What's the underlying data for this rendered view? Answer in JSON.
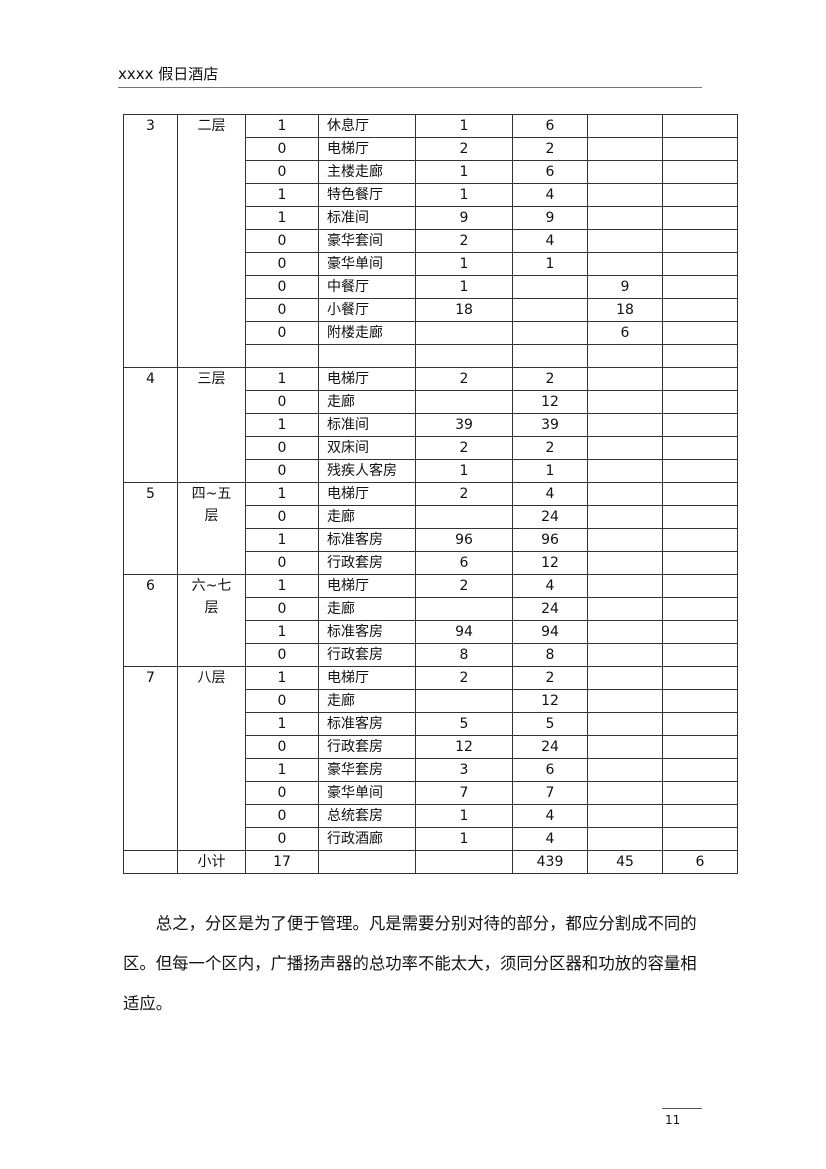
{
  "header": {
    "title": "xxxx 假日酒店"
  },
  "table": {
    "groups": [
      {
        "no": "3",
        "floor": "二层",
        "rows": [
          [
            "1",
            "休息厅",
            "1",
            "6",
            "",
            ""
          ],
          [
            "0",
            "电梯厅",
            "2",
            "2",
            "",
            ""
          ],
          [
            "0",
            "主楼走廊",
            "1",
            "6",
            "",
            ""
          ],
          [
            "1",
            "特色餐厅",
            "1",
            "4",
            "",
            ""
          ],
          [
            "1",
            "标准间",
            "9",
            "9",
            "",
            ""
          ],
          [
            "0",
            "豪华套间",
            "2",
            "4",
            "",
            ""
          ],
          [
            "0",
            "豪华单间",
            "1",
            "1",
            "",
            ""
          ],
          [
            "0",
            "中餐厅",
            "1",
            "",
            "9",
            ""
          ],
          [
            "0",
            "小餐厅",
            "18",
            "",
            "18",
            ""
          ],
          [
            "0",
            "附楼走廊",
            "",
            "",
            "6",
            ""
          ],
          [
            "",
            "",
            "",
            "",
            "",
            ""
          ]
        ]
      },
      {
        "no": "4",
        "floor": "三层",
        "rows": [
          [
            "1",
            "电梯厅",
            "2",
            "2",
            "",
            ""
          ],
          [
            "0",
            "走廊",
            "",
            "12",
            "",
            ""
          ],
          [
            "1",
            "标准间",
            "39",
            "39",
            "",
            ""
          ],
          [
            "0",
            "双床间",
            "2",
            "2",
            "",
            ""
          ],
          [
            "0",
            "残疾人客房",
            "1",
            "1",
            "",
            ""
          ]
        ]
      },
      {
        "no": "5",
        "floor": "四~五层",
        "rows": [
          [
            "1",
            "电梯厅",
            "2",
            "4",
            "",
            ""
          ],
          [
            "0",
            "走廊",
            "",
            "24",
            "",
            ""
          ],
          [
            "1",
            "标准客房",
            "96",
            "96",
            "",
            ""
          ],
          [
            "0",
            "行政套房",
            "6",
            "12",
            "",
            ""
          ]
        ]
      },
      {
        "no": "6",
        "floor": "六~七层",
        "rows": [
          [
            "1",
            "电梯厅",
            "2",
            "4",
            "",
            ""
          ],
          [
            "0",
            "走廊",
            "",
            "24",
            "",
            ""
          ],
          [
            "1",
            "标准客房",
            "94",
            "94",
            "",
            ""
          ],
          [
            "0",
            "行政套房",
            "8",
            "8",
            "",
            ""
          ]
        ]
      },
      {
        "no": "7",
        "floor": "八层",
        "rows": [
          [
            "1",
            "电梯厅",
            "2",
            "2",
            "",
            ""
          ],
          [
            "0",
            "走廊",
            "",
            "12",
            "",
            ""
          ],
          [
            "1",
            "标准客房",
            "5",
            "5",
            "",
            ""
          ],
          [
            "0",
            "行政套房",
            "12",
            "24",
            "",
            ""
          ],
          [
            "1",
            "豪华套房",
            "3",
            "6",
            "",
            ""
          ],
          [
            "0",
            "豪华单间",
            "7",
            "7",
            "",
            ""
          ],
          [
            "0",
            "总统套房",
            "1",
            "4",
            "",
            ""
          ],
          [
            "0",
            "行政酒廊",
            "1",
            "4",
            "",
            ""
          ]
        ]
      }
    ],
    "subtotal": [
      "",
      "小计",
      "17",
      "",
      "",
      "439",
      "45",
      "6"
    ]
  },
  "paragraph": "总之，分区是为了便于管理。凡是需要分别对待的部分，都应分割成不同的区。但每一个区内，广播扬声器的总功率不能太大，须同分区器和功放的容量相适应。",
  "footer": {
    "page_number": "11"
  }
}
